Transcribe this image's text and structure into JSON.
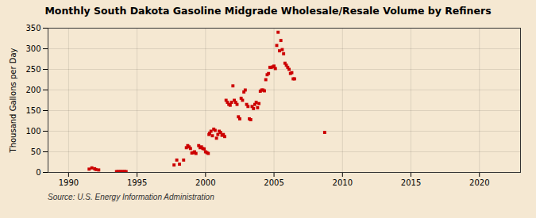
{
  "chart_data": {
    "type": "scatter",
    "title": "Monthly South Dakota Gasoline Midgrade Wholesale/Resale Volume by Refiners",
    "ylabel": "Thousand Gallons per Day",
    "source": "Source: U.S. Energy Information Administration",
    "color": "#cc0000",
    "marker": "square",
    "grid": true,
    "xlim": [
      1988.5,
      2023
    ],
    "ylim": [
      0,
      350
    ],
    "xticks": [
      1990,
      1995,
      2000,
      2005,
      2010,
      2015,
      2020
    ],
    "yticks": [
      0,
      50,
      100,
      150,
      200,
      250,
      300,
      350
    ],
    "x": [
      1991.5,
      1991.7,
      1991.9,
      1992.0,
      1992.2,
      1993.5,
      1993.6,
      1993.7,
      1993.8,
      1993.9,
      1994.0,
      1994.1,
      1994.2,
      1997.7,
      1997.9,
      1998.1,
      1998.4,
      1998.6,
      1998.7,
      1998.8,
      1998.9,
      1999.0,
      1999.1,
      1999.2,
      1999.3,
      1999.5,
      1999.6,
      1999.7,
      1999.8,
      1999.9,
      2000.0,
      2000.1,
      2000.2,
      2000.25,
      2000.3,
      2000.4,
      2000.5,
      2000.6,
      2000.7,
      2000.8,
      2000.9,
      2001.0,
      2001.1,
      2001.2,
      2001.3,
      2001.4,
      2001.5,
      2001.6,
      2001.7,
      2001.8,
      2001.9,
      2002.0,
      2002.1,
      2002.2,
      2002.3,
      2002.4,
      2002.5,
      2002.6,
      2002.7,
      2002.8,
      2002.9,
      2003.0,
      2003.1,
      2003.2,
      2003.3,
      2003.4,
      2003.5,
      2003.6,
      2003.7,
      2003.8,
      2003.9,
      2004.0,
      2004.1,
      2004.2,
      2004.3,
      2004.4,
      2004.5,
      2004.6,
      2004.7,
      2004.8,
      2004.9,
      2005.0,
      2005.1,
      2005.2,
      2005.3,
      2005.4,
      2005.5,
      2005.6,
      2005.7,
      2005.8,
      2005.9,
      2006.0,
      2006.1,
      2006.2,
      2006.3,
      2006.4,
      2006.5,
      2008.7
    ],
    "values": [
      8,
      11,
      9,
      7,
      6,
      2,
      2,
      2,
      2,
      2,
      2,
      2,
      2,
      18,
      30,
      20,
      30,
      60,
      65,
      62,
      58,
      47,
      48,
      50,
      46,
      65,
      60,
      62,
      58,
      57,
      50,
      48,
      46,
      92,
      95,
      100,
      89,
      105,
      102,
      83,
      92,
      100,
      97,
      90,
      92,
      87,
      175,
      170,
      165,
      163,
      170,
      210,
      175,
      170,
      165,
      135,
      130,
      180,
      175,
      195,
      200,
      165,
      160,
      130,
      128,
      160,
      155,
      165,
      170,
      157,
      167,
      197,
      200,
      200,
      198,
      225,
      237,
      240,
      255,
      255,
      256,
      258,
      252,
      308,
      340,
      295,
      320,
      298,
      288,
      265,
      260,
      255,
      250,
      240,
      242,
      227,
      227,
      97
    ]
  }
}
